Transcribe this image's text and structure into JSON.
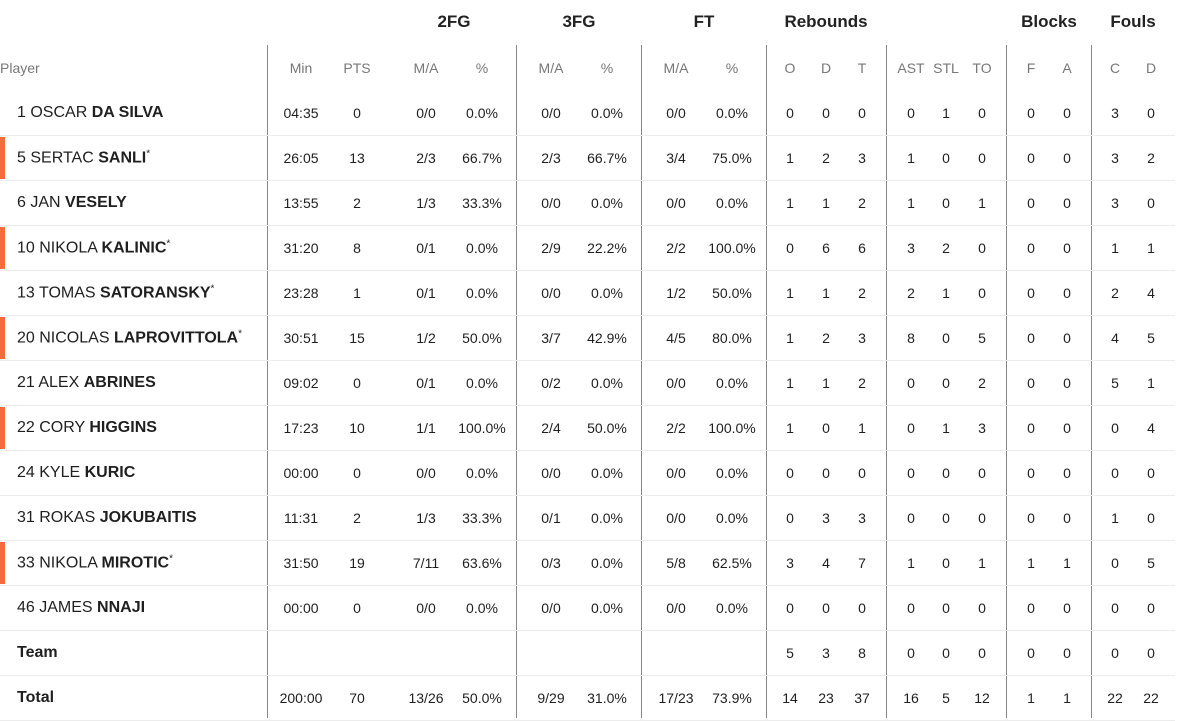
{
  "table": {
    "groups": [
      "2FG",
      "3FG",
      "FT",
      "Rebounds",
      "Blocks",
      "Fouls"
    ],
    "player_header": "Player",
    "columns": [
      "Min",
      "PTS",
      "M/A",
      "%",
      "M/A",
      "%",
      "M/A",
      "%",
      "O",
      "D",
      "T",
      "AST",
      "STL",
      "TO",
      "F",
      "A",
      "C",
      "D"
    ],
    "rows": [
      {
        "number": "1",
        "first": "OSCAR",
        "last": "DA SILVA",
        "stats": [
          "04:35",
          "0",
          "0/0",
          "0.0%",
          "0/0",
          "0.0%",
          "0/0",
          "0.0%",
          "0",
          "0",
          "0",
          "0",
          "1",
          "0",
          "0",
          "0",
          "3",
          "0"
        ]
      },
      {
        "number": "5",
        "first": "SERTAC",
        "last": "SANLI",
        "mark": "*",
        "highlight": true,
        "stats": [
          "26:05",
          "13",
          "2/3",
          "66.7%",
          "2/3",
          "66.7%",
          "3/4",
          "75.0%",
          "1",
          "2",
          "3",
          "1",
          "0",
          "0",
          "0",
          "0",
          "3",
          "2"
        ]
      },
      {
        "number": "6",
        "first": "JAN",
        "last": "VESELY",
        "stats": [
          "13:55",
          "2",
          "1/3",
          "33.3%",
          "0/0",
          "0.0%",
          "0/0",
          "0.0%",
          "1",
          "1",
          "2",
          "1",
          "0",
          "1",
          "0",
          "0",
          "3",
          "0"
        ]
      },
      {
        "number": "10",
        "first": "NIKOLA",
        "last": "KALINIC",
        "mark": "*",
        "highlight": true,
        "stats": [
          "31:20",
          "8",
          "0/1",
          "0.0%",
          "2/9",
          "22.2%",
          "2/2",
          "100.0%",
          "0",
          "6",
          "6",
          "3",
          "2",
          "0",
          "0",
          "0",
          "1",
          "1"
        ]
      },
      {
        "number": "13",
        "first": "TOMAS",
        "last": "SATORANSKY",
        "mark": "*",
        "stats": [
          "23:28",
          "1",
          "0/1",
          "0.0%",
          "0/0",
          "0.0%",
          "1/2",
          "50.0%",
          "1",
          "1",
          "2",
          "2",
          "1",
          "0",
          "0",
          "0",
          "2",
          "4"
        ]
      },
      {
        "number": "20",
        "first": "NICOLAS",
        "last": "LAPROVITTOLA",
        "mark": "*",
        "highlight": true,
        "stats": [
          "30:51",
          "15",
          "1/2",
          "50.0%",
          "3/7",
          "42.9%",
          "4/5",
          "80.0%",
          "1",
          "2",
          "3",
          "8",
          "0",
          "5",
          "0",
          "0",
          "4",
          "5"
        ]
      },
      {
        "number": "21",
        "first": "ALEX",
        "last": "ABRINES",
        "stats": [
          "09:02",
          "0",
          "0/1",
          "0.0%",
          "0/2",
          "0.0%",
          "0/0",
          "0.0%",
          "1",
          "1",
          "2",
          "0",
          "0",
          "2",
          "0",
          "0",
          "5",
          "1"
        ]
      },
      {
        "number": "22",
        "first": "CORY",
        "last": "HIGGINS",
        "highlight": true,
        "stats": [
          "17:23",
          "10",
          "1/1",
          "100.0%",
          "2/4",
          "50.0%",
          "2/2",
          "100.0%",
          "1",
          "0",
          "1",
          "0",
          "1",
          "3",
          "0",
          "0",
          "0",
          "4"
        ]
      },
      {
        "number": "24",
        "first": "KYLE",
        "last": "KURIC",
        "stats": [
          "00:00",
          "0",
          "0/0",
          "0.0%",
          "0/0",
          "0.0%",
          "0/0",
          "0.0%",
          "0",
          "0",
          "0",
          "0",
          "0",
          "0",
          "0",
          "0",
          "0",
          "0"
        ]
      },
      {
        "number": "31",
        "first": "ROKAS",
        "last": "JOKUBAITIS",
        "stats": [
          "11:31",
          "2",
          "1/3",
          "33.3%",
          "0/1",
          "0.0%",
          "0/0",
          "0.0%",
          "0",
          "3",
          "3",
          "0",
          "0",
          "0",
          "0",
          "0",
          "1",
          "0"
        ]
      },
      {
        "number": "33",
        "first": "NIKOLA",
        "last": "MIROTIC",
        "mark": "*",
        "highlight": true,
        "stats": [
          "31:50",
          "19",
          "7/11",
          "63.6%",
          "0/3",
          "0.0%",
          "5/8",
          "62.5%",
          "3",
          "4",
          "7",
          "1",
          "0",
          "1",
          "1",
          "1",
          "0",
          "5"
        ]
      },
      {
        "number": "46",
        "first": "JAMES",
        "last": "NNAJI",
        "stats": [
          "00:00",
          "0",
          "0/0",
          "0.0%",
          "0/0",
          "0.0%",
          "0/0",
          "0.0%",
          "0",
          "0",
          "0",
          "0",
          "0",
          "0",
          "0",
          "0",
          "0",
          "0"
        ]
      },
      {
        "label": "Team",
        "stats": [
          null,
          null,
          null,
          null,
          null,
          null,
          null,
          null,
          "5",
          "3",
          "8",
          "0",
          "0",
          "0",
          "0",
          "0",
          "0",
          "0"
        ]
      },
      {
        "label": "Total",
        "stats": [
          "200:00",
          "70",
          "13/26",
          "50.0%",
          "9/29",
          "31.0%",
          "17/23",
          "73.9%",
          "14",
          "23",
          "37",
          "16",
          "5",
          "12",
          "1",
          "1",
          "22",
          "22"
        ]
      }
    ]
  }
}
